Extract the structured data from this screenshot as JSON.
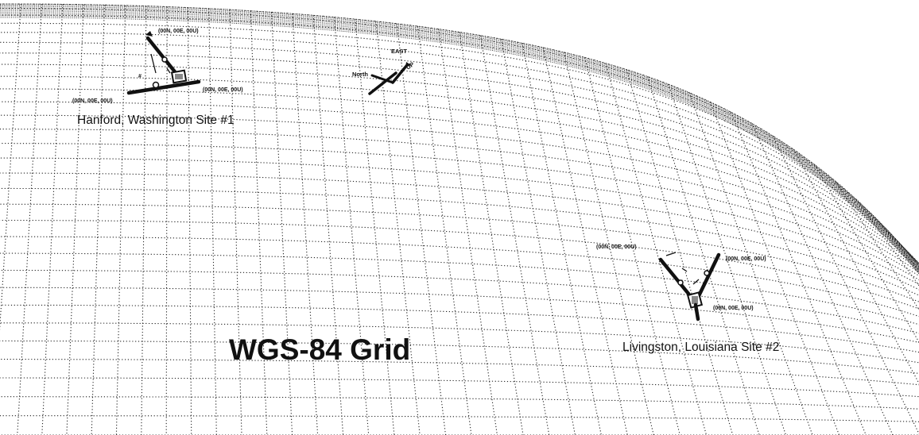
{
  "title": "WGS-84 Grid",
  "sites": [
    {
      "name": "Hanford, Washington Site #1",
      "coords": [
        "(00N, 00E, 00U)",
        "(00N, 00E, 00U)",
        "(00N, 00E, 00U)"
      ]
    },
    {
      "name": "Livingston, Louisiana Site #2",
      "coords": [
        "(00N, 00E, 00U)",
        "(00N, 00E, 00U)",
        "(00N, 00E, 00U)"
      ]
    }
  ],
  "axes": {
    "east": "EAST",
    "north": "North",
    "up": "UP"
  },
  "colors": {
    "ink": "#111111",
    "background": "#ffffff"
  }
}
